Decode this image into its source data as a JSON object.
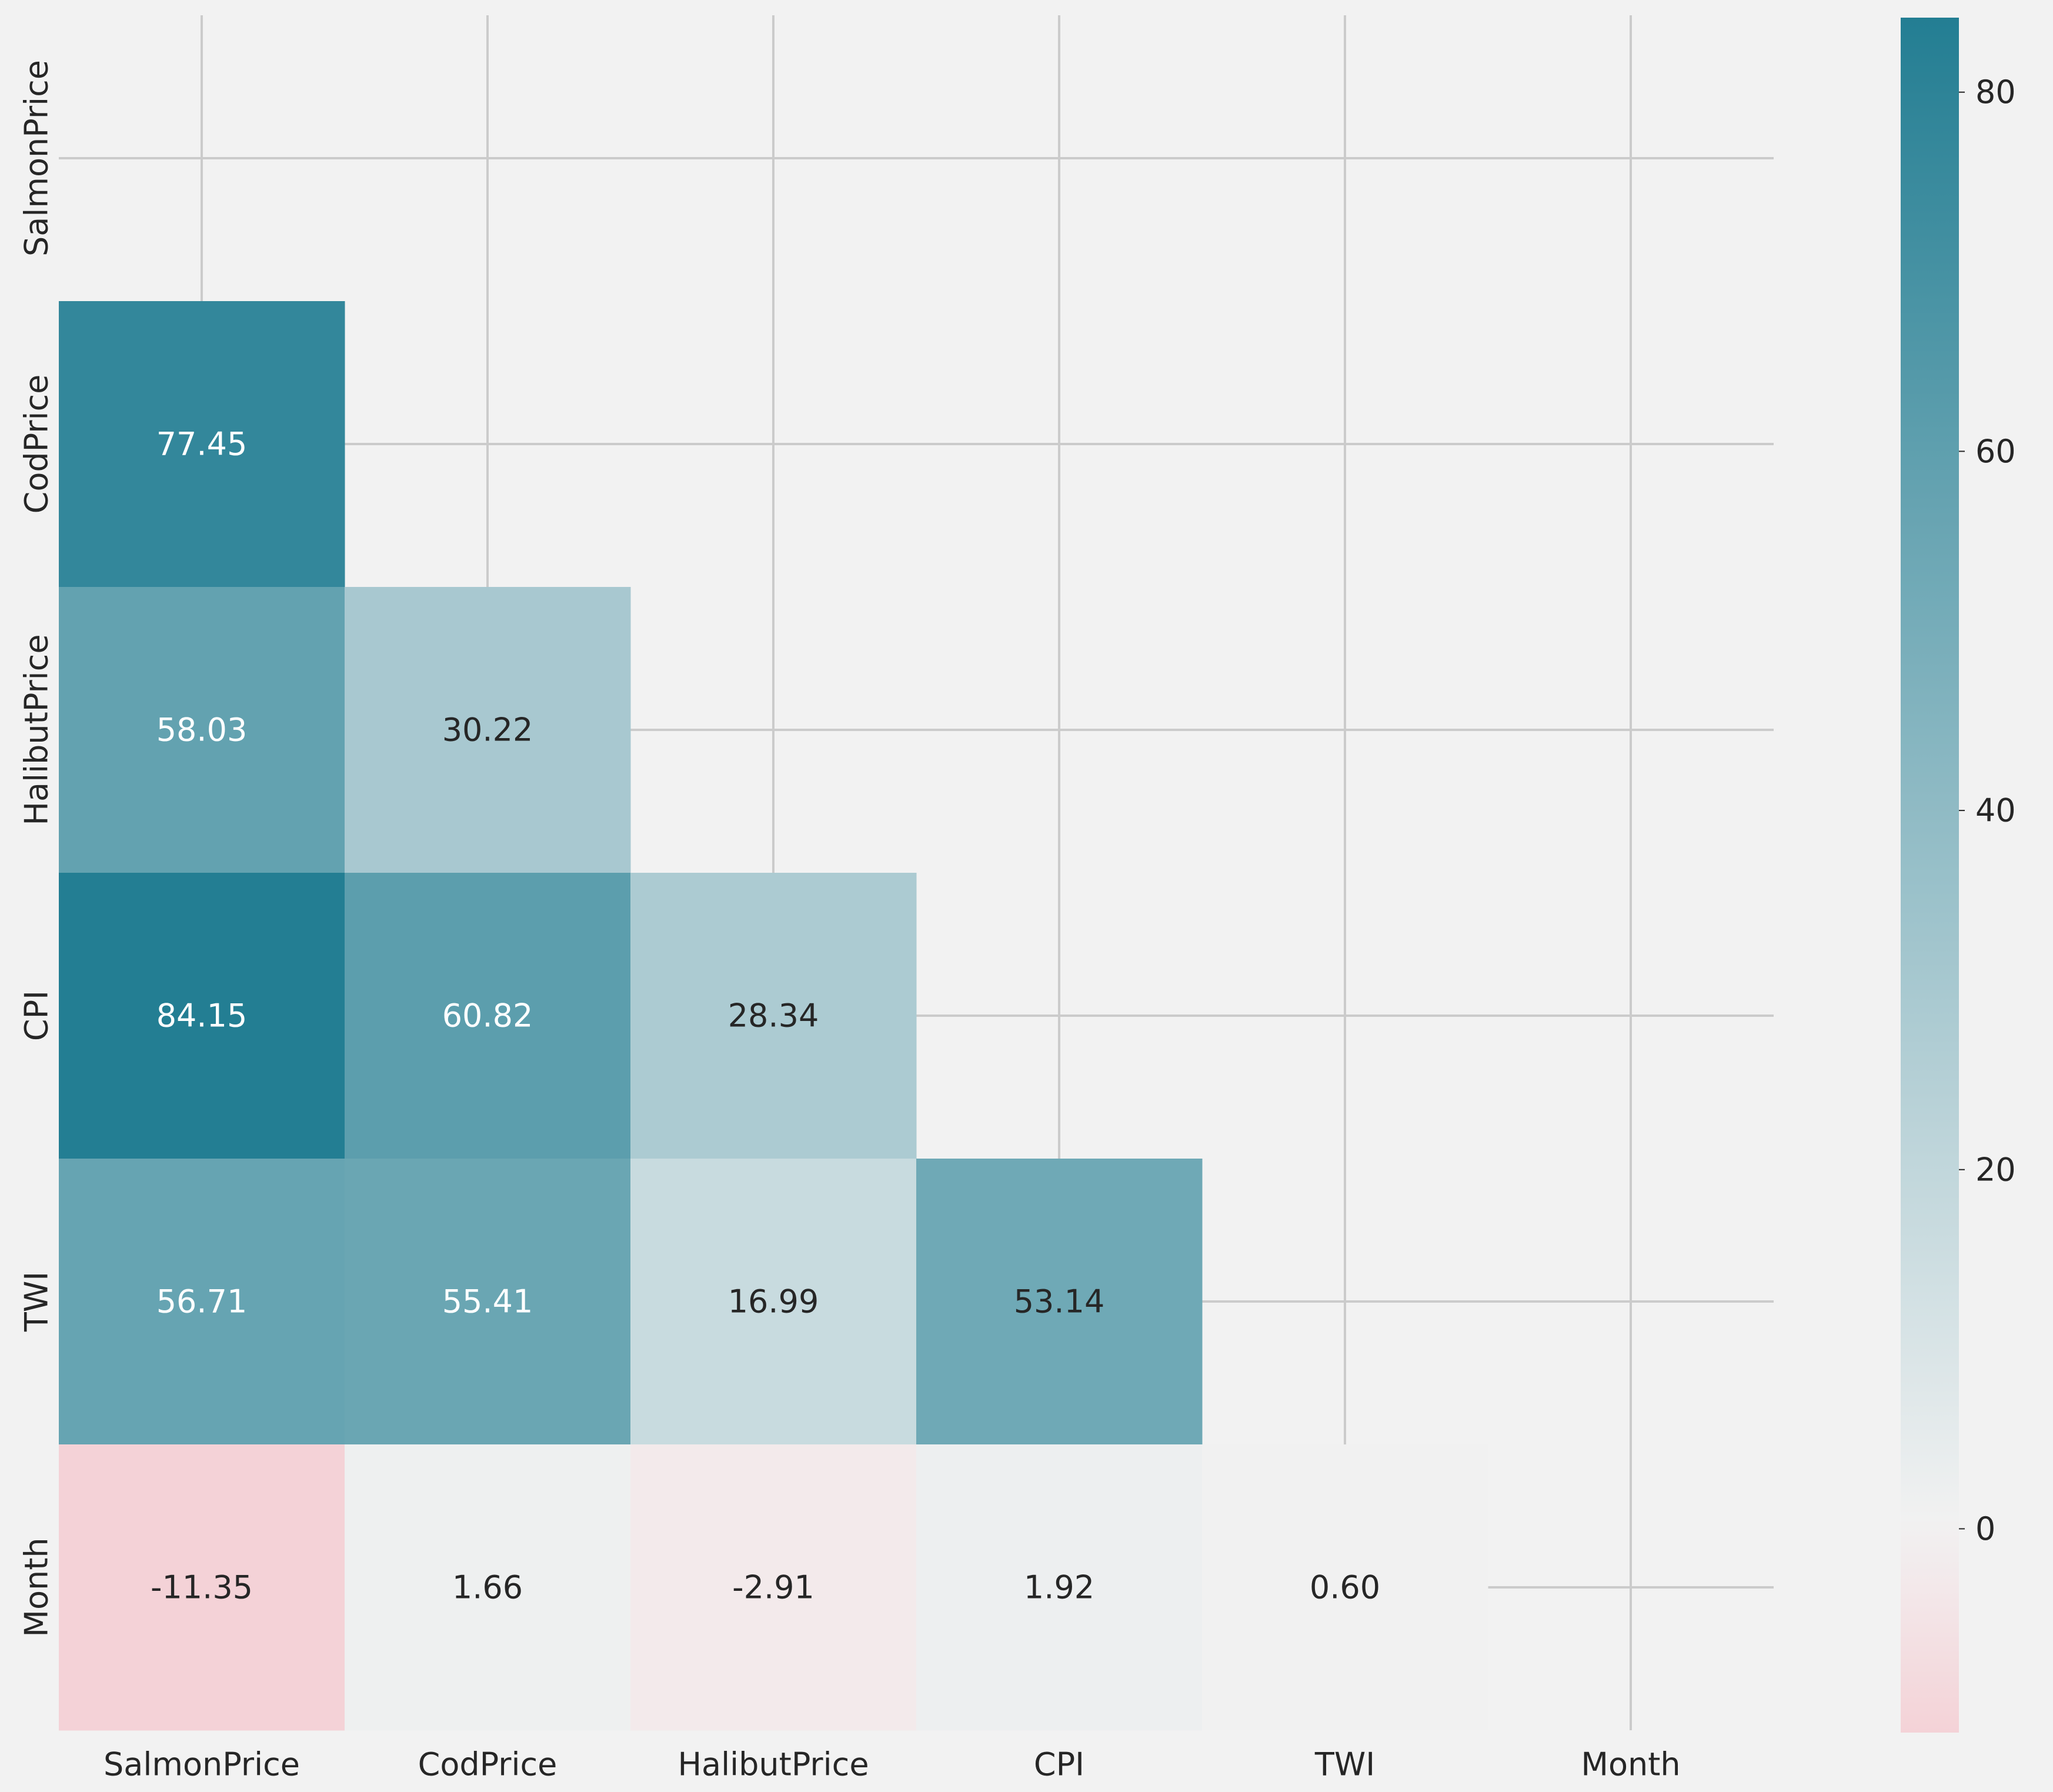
{
  "chart_data": {
    "type": "heatmap",
    "title": "",
    "xlabel": "",
    "ylabel": "",
    "x_categories": [
      "SalmonPrice",
      "CodPrice",
      "HalibutPrice",
      "CPI",
      "TWI",
      "Month"
    ],
    "y_categories": [
      "SalmonPrice",
      "CodPrice",
      "HalibutPrice",
      "CPI",
      "TWI",
      "Month"
    ],
    "mask": "upper-triangle-including-diagonal",
    "cells": [
      {
        "row": "CodPrice",
        "col": "SalmonPrice",
        "value": 77.45,
        "label": "77.45"
      },
      {
        "row": "HalibutPrice",
        "col": "SalmonPrice",
        "value": 58.03,
        "label": "58.03"
      },
      {
        "row": "HalibutPrice",
        "col": "CodPrice",
        "value": 30.22,
        "label": "30.22"
      },
      {
        "row": "CPI",
        "col": "SalmonPrice",
        "value": 84.15,
        "label": "84.15"
      },
      {
        "row": "CPI",
        "col": "CodPrice",
        "value": 60.82,
        "label": "60.82"
      },
      {
        "row": "CPI",
        "col": "HalibutPrice",
        "value": 28.34,
        "label": "28.34"
      },
      {
        "row": "TWI",
        "col": "SalmonPrice",
        "value": 56.71,
        "label": "56.71"
      },
      {
        "row": "TWI",
        "col": "CodPrice",
        "value": 55.41,
        "label": "55.41"
      },
      {
        "row": "TWI",
        "col": "HalibutPrice",
        "value": 16.99,
        "label": "16.99"
      },
      {
        "row": "TWI",
        "col": "CPI",
        "value": 53.14,
        "label": "53.14"
      },
      {
        "row": "Month",
        "col": "SalmonPrice",
        "value": -11.35,
        "label": "-11.35"
      },
      {
        "row": "Month",
        "col": "CodPrice",
        "value": 1.66,
        "label": "1.66"
      },
      {
        "row": "Month",
        "col": "HalibutPrice",
        "value": -2.91,
        "label": "-2.91"
      },
      {
        "row": "Month",
        "col": "CPI",
        "value": 1.92,
        "label": "1.92"
      },
      {
        "row": "Month",
        "col": "TWI",
        "value": 0.6,
        "label": "0.60"
      }
    ],
    "colorbar": {
      "range": [
        -11.35,
        84.15
      ],
      "ticks": [
        0,
        20,
        40,
        60,
        80
      ],
      "tick_labels": [
        "0",
        "20",
        "40",
        "60",
        "80"
      ],
      "colors": {
        "low": "#f4d2d7",
        "center": "#f2f2f2",
        "high": "#237e93"
      },
      "center_value": 0
    },
    "grid": true,
    "legend": "colorbar-right"
  },
  "colors": {
    "background": "#f2f2f2",
    "grid": "#cbcbcb",
    "text_dark": "#262626",
    "text_light": "#ffffff"
  }
}
